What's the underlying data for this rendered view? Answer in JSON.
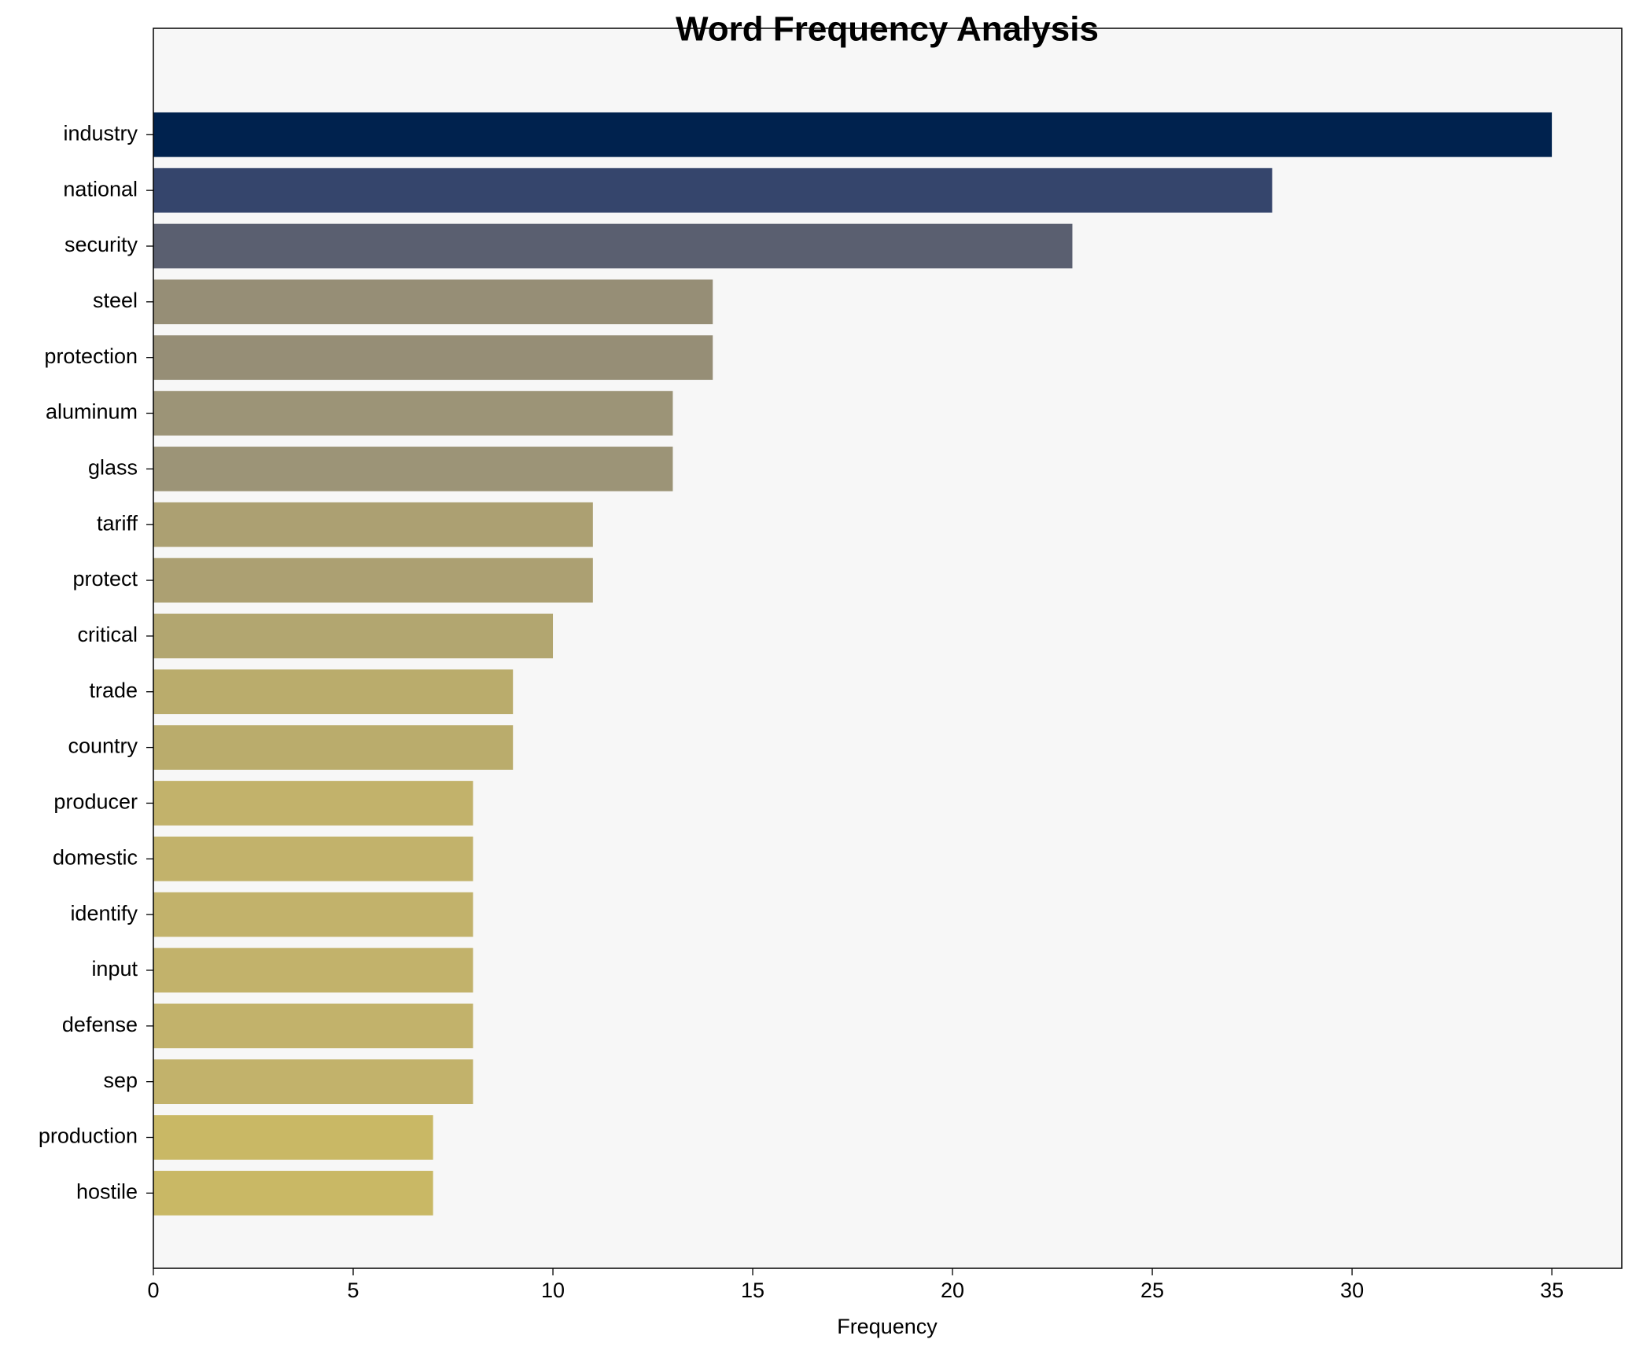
{
  "chart_data": {
    "type": "barh",
    "title": "Word Frequency Analysis",
    "x_label": "Frequency",
    "categories": [
      "industry",
      "national",
      "security",
      "steel",
      "protection",
      "aluminum",
      "glass",
      "tariff",
      "protect",
      "critical",
      "trade",
      "country",
      "producer",
      "domestic",
      "identify",
      "input",
      "defense",
      "sep",
      "production",
      "hostile"
    ],
    "values": [
      35,
      28,
      23,
      14,
      14,
      13,
      13,
      11,
      11,
      10,
      9,
      9,
      8,
      8,
      8,
      8,
      8,
      8,
      7,
      7
    ],
    "colors": [
      "#00224e",
      "#35456c",
      "#5a5f70",
      "#968e76",
      "#968e76",
      "#9c9477",
      "#9c9477",
      "#aca072",
      "#aca072",
      "#b2a670",
      "#baac6c",
      "#baac6c",
      "#c2b26b",
      "#c2b26b",
      "#c2b26b",
      "#c2b26b",
      "#c2b26b",
      "#c2b26b",
      "#c9b865",
      "#c9b865"
    ],
    "xlim": [
      0,
      36.75
    ],
    "xticks": [
      0,
      5,
      10,
      15,
      20,
      25,
      30,
      35
    ]
  }
}
